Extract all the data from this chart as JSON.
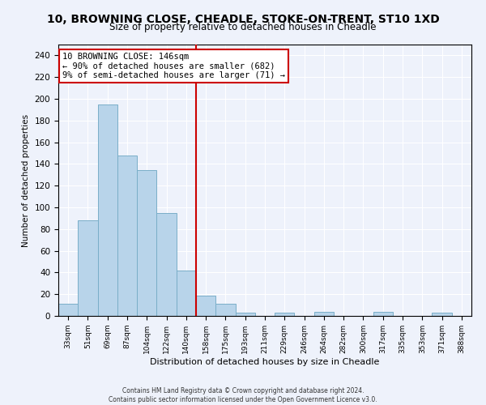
{
  "title": "10, BROWNING CLOSE, CHEADLE, STOKE-ON-TRENT, ST10 1XD",
  "subtitle": "Size of property relative to detached houses in Cheadle",
  "xlabel": "Distribution of detached houses by size in Cheadle",
  "ylabel": "Number of detached properties",
  "bar_labels": [
    "33sqm",
    "51sqm",
    "69sqm",
    "87sqm",
    "104sqm",
    "122sqm",
    "140sqm",
    "158sqm",
    "175sqm",
    "193sqm",
    "211sqm",
    "229sqm",
    "246sqm",
    "264sqm",
    "282sqm",
    "300sqm",
    "317sqm",
    "335sqm",
    "353sqm",
    "371sqm",
    "388sqm"
  ],
  "bar_values": [
    11,
    88,
    195,
    148,
    134,
    95,
    42,
    19,
    11,
    3,
    0,
    3,
    0,
    4,
    0,
    0,
    4,
    0,
    0,
    3,
    0
  ],
  "bar_color": "#b8d4ea",
  "bar_edge_color": "#7aaec8",
  "vline_x": 6.5,
  "vline_color": "#cc0000",
  "annotation_line1": "10 BROWNING CLOSE: 146sqm",
  "annotation_line2": "← 90% of detached houses are smaller (682)",
  "annotation_line3": "9% of semi-detached houses are larger (71) →",
  "annotation_box_color": "#ffffff",
  "annotation_box_edge": "#cc0000",
  "ylim": [
    0,
    250
  ],
  "yticks": [
    0,
    20,
    40,
    60,
    80,
    100,
    120,
    140,
    160,
    180,
    200,
    220,
    240
  ],
  "footer_line1": "Contains HM Land Registry data © Crown copyright and database right 2024.",
  "footer_line2": "Contains public sector information licensed under the Open Government Licence v3.0.",
  "background_color": "#eef2fb"
}
